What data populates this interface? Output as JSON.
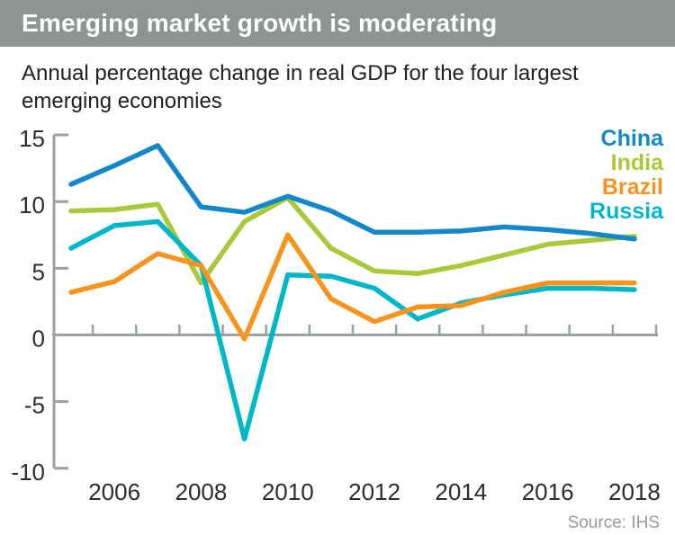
{
  "header": {
    "title": "Emerging market growth is moderating"
  },
  "subtitle": {
    "line1": "Annual percentage change in real GDP for the four largest",
    "line2": "emerging economies"
  },
  "source": "Source: IHS",
  "chart_data": {
    "type": "line",
    "title": "Emerging market growth is moderating",
    "subtitle": "Annual percentage change in real GDP for the four largest emerging economies",
    "x": [
      2005,
      2006,
      2007,
      2008,
      2009,
      2010,
      2011,
      2012,
      2013,
      2014,
      2015,
      2016,
      2017,
      2018
    ],
    "series": [
      {
        "name": "China",
        "color": "#1487c8",
        "values": [
          11.3,
          12.7,
          14.2,
          9.6,
          9.2,
          10.4,
          9.3,
          7.7,
          7.7,
          7.8,
          8.1,
          7.9,
          7.6,
          7.2
        ]
      },
      {
        "name": "India",
        "color": "#a9c93a",
        "values": [
          9.3,
          9.4,
          9.8,
          3.9,
          8.5,
          10.3,
          6.5,
          4.8,
          4.6,
          5.2,
          6.0,
          6.8,
          7.1,
          7.4
        ]
      },
      {
        "name": "Brazil",
        "color": "#f7941e",
        "values": [
          3.2,
          4.0,
          6.1,
          5.2,
          -0.3,
          7.5,
          2.7,
          1.0,
          2.1,
          2.2,
          3.2,
          3.9,
          3.9,
          3.9
        ]
      },
      {
        "name": "Russia",
        "color": "#00b6c9",
        "values": [
          6.5,
          8.2,
          8.5,
          5.2,
          -7.8,
          4.5,
          4.4,
          3.5,
          1.2,
          2.4,
          3.0,
          3.5,
          3.5,
          3.4
        ]
      }
    ],
    "ylim": [
      -10,
      15
    ],
    "yticks": [
      15,
      10,
      5,
      0,
      -5,
      -10
    ],
    "xtick_labels": [
      "2006",
      "2008",
      "2010",
      "2012",
      "2014",
      "2016",
      "2018"
    ],
    "grid": false,
    "legend_position": "top-right",
    "axis_color": "#9ba0a1",
    "label_color": "#2d2d2d",
    "source": "Source: IHS"
  }
}
